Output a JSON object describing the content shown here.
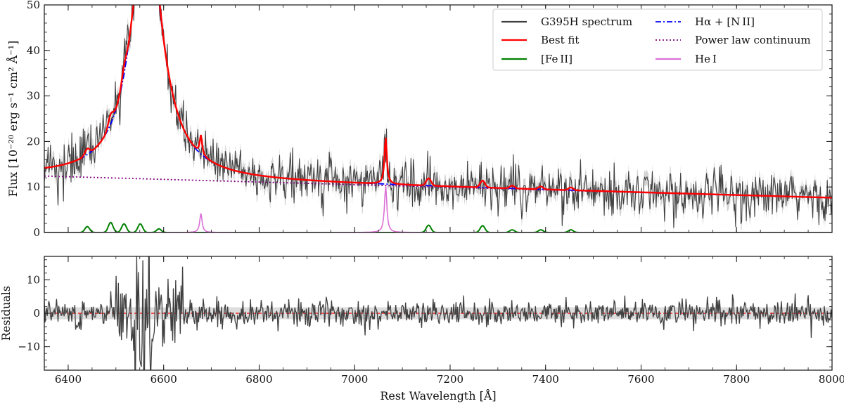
{
  "chart_data": [
    {
      "type": "line",
      "panel": "top",
      "xlabel": "",
      "ylabel": "Flux [10⁻²⁰ erg s⁻¹ cm² Å⁻¹]",
      "xlim": [
        6350,
        8000
      ],
      "ylim": [
        0,
        50
      ],
      "xticks": [
        6400,
        6600,
        6800,
        7000,
        7200,
        7400,
        7600,
        7800,
        8000
      ],
      "yticks": [
        0,
        10,
        20,
        30,
        40,
        50
      ],
      "ytick_labels": [
        "0",
        "10",
        "20",
        "30",
        "40",
        "50"
      ],
      "legend": {
        "position": "top-right",
        "entries": [
          {
            "label": "G395H spectrum",
            "color": "#404040",
            "style": "solid"
          },
          {
            "label": "Hα + [N II]",
            "color": "#0000ff",
            "style": "dashdot"
          },
          {
            "label": "Best fit",
            "color": "#ff0000",
            "style": "solid"
          },
          {
            "label": "Power law continuum",
            "color": "#800080",
            "style": "dotted"
          },
          {
            "label": "[Fe II]",
            "color": "#008000",
            "style": "solid"
          },
          {
            "label": "He I",
            "color": "#da70d6",
            "style": "solid"
          }
        ]
      },
      "continuum": {
        "x": [
          6350,
          8000
        ],
        "y": [
          12.4,
          7.6
        ]
      },
      "halpha": {
        "center": 6564,
        "peak": 58,
        "width": 38,
        "extends_above_axis": true
      },
      "hei_peaks": [
        {
          "x": 6678,
          "y": 4.2
        },
        {
          "x": 7065,
          "y": 10.2
        }
      ],
      "feii_peaks": [
        {
          "x": 6440,
          "y": 1.3
        },
        {
          "x": 6489,
          "y": 2.2
        },
        {
          "x": 6517,
          "y": 1.9
        },
        {
          "x": 6551,
          "y": 1.9
        },
        {
          "x": 6590,
          "y": 0.8
        },
        {
          "x": 7155,
          "y": 1.6
        },
        {
          "x": 7268,
          "y": 1.5
        },
        {
          "x": 7330,
          "y": 0.6
        },
        {
          "x": 7390,
          "y": 0.6
        },
        {
          "x": 7453,
          "y": 0.6
        }
      ],
      "noise_sigma": 2.6,
      "uncertainty_band_color": "#d3d3d3"
    },
    {
      "type": "line",
      "panel": "bottom",
      "xlabel": "Rest Wavelength [Å]",
      "ylabel": "Residuals",
      "xlim": [
        6350,
        8000
      ],
      "ylim": [
        -17,
        17
      ],
      "xticks": [
        6400,
        6600,
        6800,
        7000,
        7200,
        7400,
        7600,
        7800,
        8000
      ],
      "xtick_labels": [
        "6400",
        "6600",
        "6800",
        "7000",
        "7200",
        "7400",
        "7600",
        "7800",
        "8000"
      ],
      "yticks": [
        -10,
        0,
        10
      ],
      "ytick_labels": [
        "−10",
        "0",
        "10"
      ],
      "zero_line_color": "#ff0000",
      "residual_color": "#404040",
      "noise_sigma": 2.0,
      "spike_region": [
        6500,
        6640
      ]
    }
  ]
}
